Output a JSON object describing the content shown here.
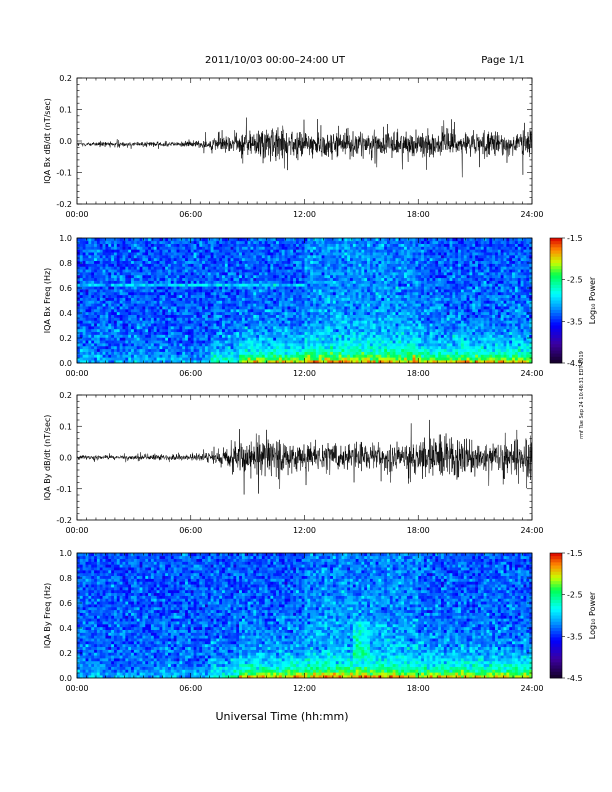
{
  "header": {
    "title": "2011/10/03  00:00–24:00 UT",
    "page": "Page 1/1"
  },
  "footer_stamp": "rmf Tue Sep 24 10:48:31 EDT 2019",
  "chart_data": [
    {
      "type": "line",
      "ylabel": "IQA Bx dB/dt (nT/sec)",
      "xlim": [
        0,
        24
      ],
      "ylim": [
        -0.2,
        0.2
      ],
      "x_ticks": [
        "00:00",
        "06:00",
        "12:00",
        "18:00",
        "24:00"
      ],
      "y_ticks": [
        "0.2",
        "0.1",
        "0.0",
        "-0.1",
        "-0.2"
      ],
      "envelope": {
        "x": [
          0,
          1,
          2,
          3,
          4,
          5,
          6,
          7,
          8,
          9,
          10,
          11,
          12,
          13,
          14,
          15,
          16,
          17,
          18,
          19,
          20,
          21,
          22,
          23,
          24
        ],
        "amp": [
          0.008,
          0.008,
          0.009,
          0.009,
          0.01,
          0.01,
          0.012,
          0.02,
          0.035,
          0.05,
          0.07,
          0.055,
          0.05,
          0.05,
          0.055,
          0.045,
          0.045,
          0.05,
          0.05,
          0.045,
          0.045,
          0.045,
          0.045,
          0.05,
          0.07
        ]
      },
      "baseline": -0.01
    },
    {
      "type": "heatmap",
      "ylabel": "IQA Bx Freq (Hz)",
      "xlim": [
        0,
        24
      ],
      "ylim": [
        0,
        1.0
      ],
      "x_ticks": [
        "00:00",
        "06:00",
        "12:00",
        "18:00",
        "24:00"
      ],
      "y_ticks": [
        "1.0",
        "0.8",
        "0.6",
        "0.4",
        "0.2",
        "0.0"
      ],
      "colorbar": {
        "label": "Log₁₀ Power",
        "ticks": [
          "-1.5",
          "-2.5",
          "-3.5",
          "-4.5"
        ],
        "range": [
          -4.5,
          -1.5
        ]
      }
    },
    {
      "type": "line",
      "ylabel": "IQA By dB/dt (nT/sec)",
      "xlim": [
        0,
        24
      ],
      "ylim": [
        -0.2,
        0.2
      ],
      "x_ticks": [
        "00:00",
        "06:00",
        "12:00",
        "18:00",
        "24:00"
      ],
      "y_ticks": [
        "0.2",
        "0.1",
        "0.0",
        "-0.1",
        "-0.2"
      ],
      "envelope": {
        "x": [
          0,
          1,
          2,
          3,
          4,
          5,
          6,
          7,
          8,
          9,
          10,
          11,
          12,
          13,
          14,
          15,
          16,
          17,
          18,
          19,
          20,
          21,
          22,
          23,
          24
        ],
        "amp": [
          0.008,
          0.008,
          0.008,
          0.009,
          0.012,
          0.01,
          0.012,
          0.02,
          0.04,
          0.07,
          0.08,
          0.06,
          0.055,
          0.05,
          0.05,
          0.045,
          0.045,
          0.05,
          0.06,
          0.08,
          0.1,
          0.06,
          0.05,
          0.06,
          0.09
        ]
      },
      "baseline": 0.0
    },
    {
      "type": "heatmap",
      "ylabel": "IQA By Freq (Hz)",
      "xlim": [
        0,
        24
      ],
      "ylim": [
        0,
        1.0
      ],
      "x_ticks": [
        "00:00",
        "06:00",
        "12:00",
        "18:00",
        "24:00"
      ],
      "y_ticks": [
        "1.0",
        "0.8",
        "0.6",
        "0.4",
        "0.2",
        "0.0"
      ],
      "xlabel": "Universal Time (hh:mm)",
      "colorbar": {
        "label": "Log₁₀ Power",
        "ticks": [
          "-1.5",
          "-2.5",
          "-3.5",
          "-4.5"
        ],
        "range": [
          -4.5,
          -1.5
        ]
      }
    }
  ]
}
